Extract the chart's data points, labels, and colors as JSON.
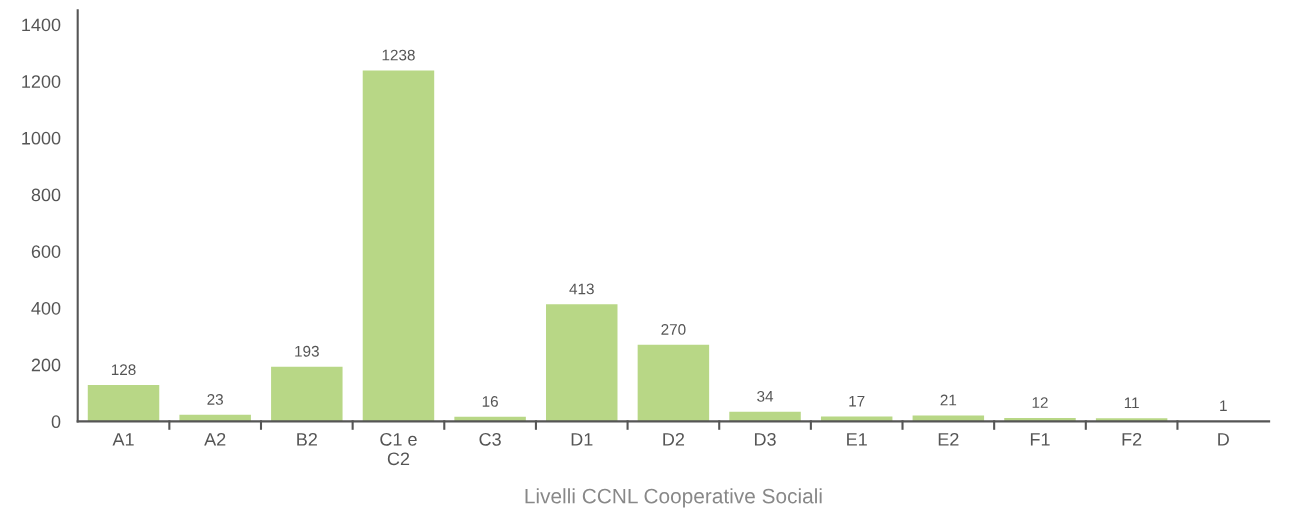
{
  "chart_data": {
    "type": "bar",
    "xlabel": "Livelli CCNL Cooperative Sociali",
    "categories": [
      "A1",
      "A2",
      "B2",
      "C1 e\nC2",
      "C3",
      "D1",
      "D2",
      "D3",
      "E1",
      "E2",
      "F1",
      "F2",
      "D"
    ],
    "values": [
      128,
      23,
      193,
      1238,
      16,
      413,
      270,
      34,
      17,
      21,
      12,
      11,
      1
    ],
    "color": "#b8d786",
    "ylim": [
      0,
      1450
    ],
    "yticks": [
      0,
      200,
      400,
      600,
      800,
      1000,
      1200,
      1400
    ],
    "data_labels": true,
    "grid": false
  }
}
